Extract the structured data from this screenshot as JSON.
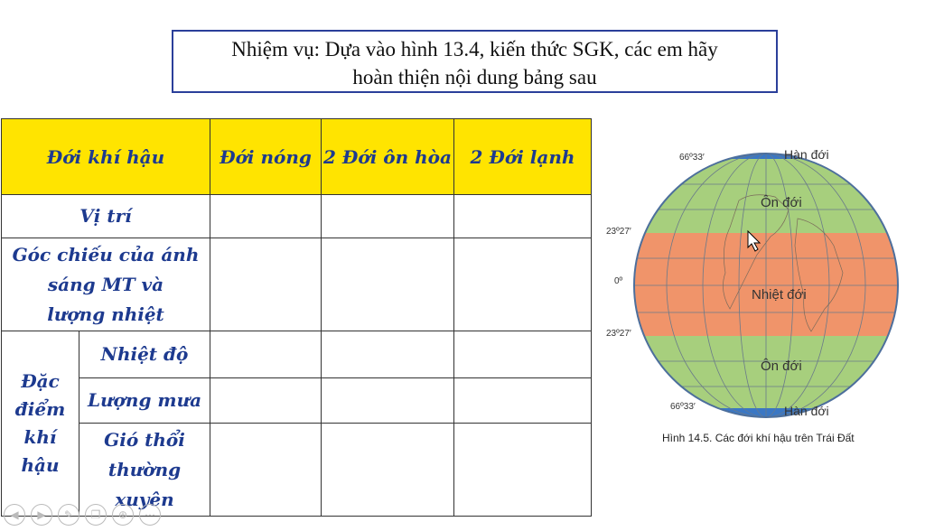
{
  "task": {
    "line1": "Nhiệm vụ: Dựa vào hình 13.4, kiến thức SGK, các em hãy",
    "line2": "hoàn thiện nội dung bảng sau"
  },
  "table": {
    "headers": [
      "Đới khí hậu",
      "Đới nóng",
      "2 Đới ôn hòa",
      "2 Đới lạnh"
    ],
    "row_position": "Vị trí",
    "row_angle_lines": [
      "Góc chiếu của ánh",
      "sáng MT và",
      "lượng nhiệt"
    ],
    "group_label_lines": [
      "Đặc",
      "điểm",
      "khí",
      "hậu"
    ],
    "row_temperature": "Nhiệt độ",
    "row_rainfall": "Lượng mưa",
    "row_wind_lines": [
      "Gió thổi",
      "thường",
      "xuyên"
    ]
  },
  "figure": {
    "labels": {
      "cold_top": "Hàn đới",
      "temperate_top": "Ôn đới",
      "tropical": "Nhiệt đới",
      "temperate_bottom": "Ôn đới",
      "cold_bottom": "Hàn đới"
    },
    "latitudes": {
      "north_polar": "66º33′",
      "north_tropic": "23º27′",
      "equator": "0º",
      "south_tropic": "23º27′",
      "south_polar": "66º33′"
    },
    "caption": "Hình 14.5. Các đới khí hậu trên Trái Đất",
    "colors": {
      "tropical": "#f0946a",
      "temperate": "#a7cf7d",
      "cold": "#3a77c4",
      "grid": "#6a7a8a"
    }
  },
  "nav": {
    "icons": [
      "back-icon",
      "forward-icon",
      "pen-icon",
      "copy-icon",
      "zoom-icon",
      "more-icon"
    ]
  }
}
